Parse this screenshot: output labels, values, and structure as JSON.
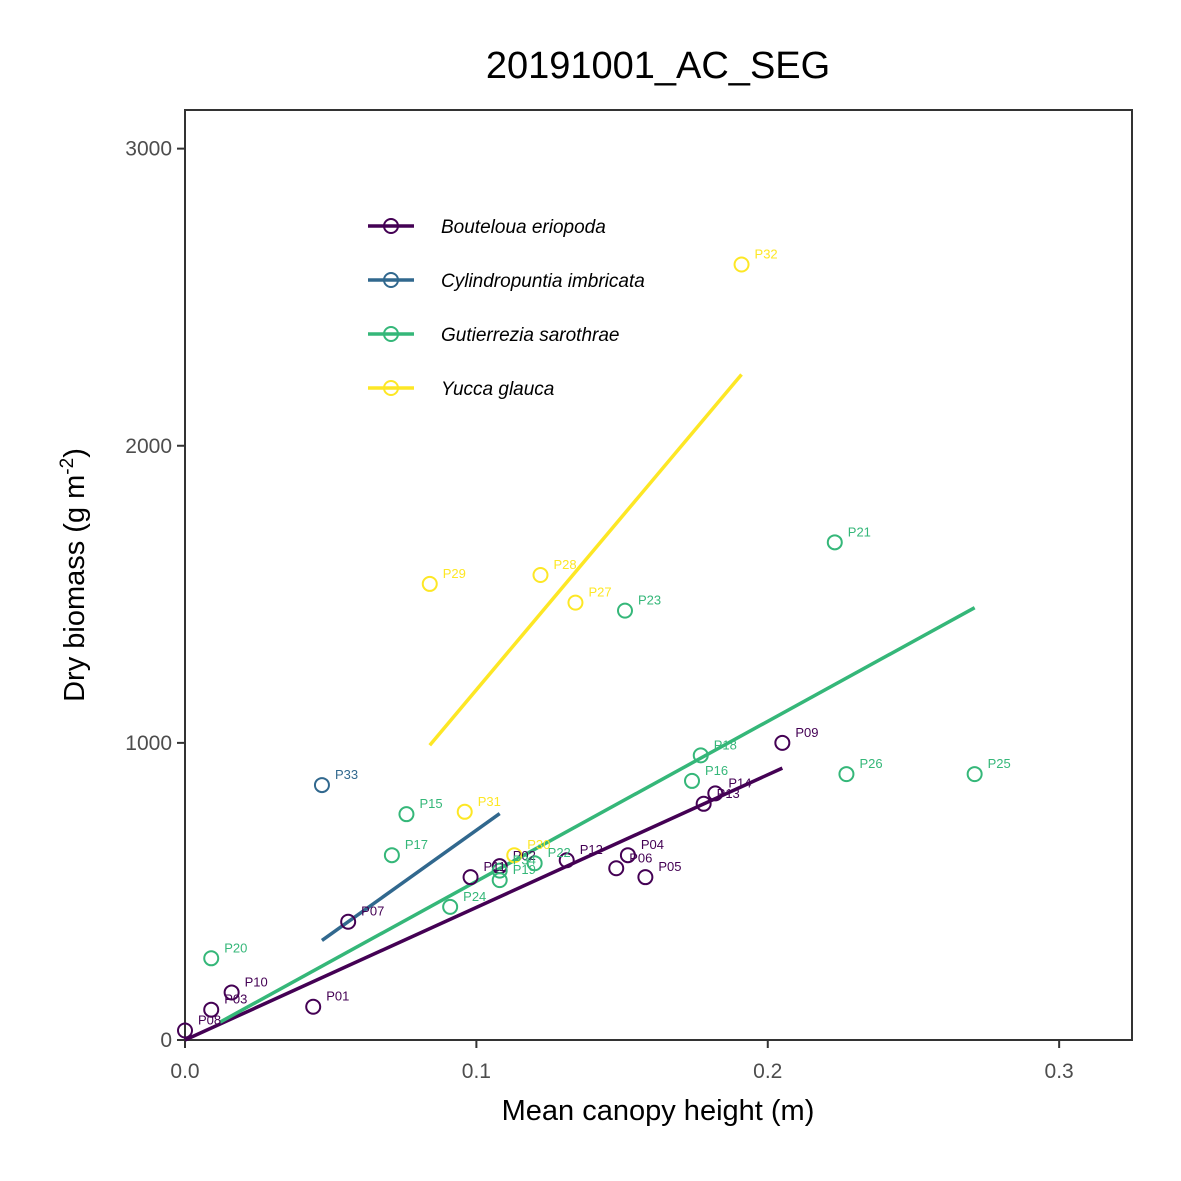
{
  "chart_data": {
    "type": "scatter",
    "title": "20191001_AC_SEG",
    "xlabel": "Mean canopy height (m)",
    "ylabel_main": "Dry biomass (g m",
    "ylabel_exp": "-2",
    "ylabel_close": ")",
    "xlim": [
      0,
      0.325
    ],
    "ylim": [
      0,
      3130
    ],
    "x_ticks": [
      {
        "value": 0.0,
        "label": "0.0"
      },
      {
        "value": 0.1,
        "label": "0.1"
      },
      {
        "value": 0.2,
        "label": "0.2"
      },
      {
        "value": 0.3,
        "label": "0.3"
      }
    ],
    "y_ticks": [
      {
        "value": 0,
        "label": "0"
      },
      {
        "value": 1000,
        "label": "1000"
      },
      {
        "value": 2000,
        "label": "2000"
      },
      {
        "value": 3000,
        "label": "3000"
      }
    ],
    "grid": false,
    "legend_position": "top-left",
    "series": [
      {
        "name": "Bouteloua eriopoda",
        "color": "#440154",
        "fit": [
          [
            0.0,
            0
          ],
          [
            0.205,
            915
          ]
        ],
        "points": [
          {
            "id": "P01",
            "x": 0.044,
            "y": 112
          },
          {
            "id": "P02",
            "x": 0.108,
            "y": 585
          },
          {
            "id": "P03",
            "x": 0.009,
            "y": 102
          },
          {
            "id": "P04",
            "x": 0.152,
            "y": 622
          },
          {
            "id": "P05",
            "x": 0.158,
            "y": 548
          },
          {
            "id": "P06",
            "x": 0.148,
            "y": 578
          },
          {
            "id": "P07",
            "x": 0.056,
            "y": 398
          },
          {
            "id": "P08",
            "x": 0.0,
            "y": 32
          },
          {
            "id": "P09",
            "x": 0.205,
            "y": 1000
          },
          {
            "id": "P10",
            "x": 0.016,
            "y": 160
          },
          {
            "id": "P11",
            "x": 0.098,
            "y": 548
          },
          {
            "id": "P12",
            "x": 0.131,
            "y": 605
          },
          {
            "id": "P13",
            "x": 0.178,
            "y": 795
          },
          {
            "id": "P14",
            "x": 0.182,
            "y": 830
          }
        ]
      },
      {
        "name": "Cylindropuntia imbricata",
        "color": "#31688E",
        "fit": [
          [
            0.047,
            335
          ],
          [
            0.108,
            762
          ]
        ],
        "points": [
          {
            "id": "P33",
            "x": 0.047,
            "y": 858
          }
        ]
      },
      {
        "name": "Gutierrezia sarothrae",
        "color": "#35B779",
        "fit": [
          [
            0.012,
            60
          ],
          [
            0.271,
            1455
          ]
        ],
        "points": [
          {
            "id": "P15",
            "x": 0.076,
            "y": 760
          },
          {
            "id": "P16",
            "x": 0.174,
            "y": 872
          },
          {
            "id": "P17",
            "x": 0.071,
            "y": 622
          },
          {
            "id": "P18",
            "x": 0.177,
            "y": 958
          },
          {
            "id": "P19",
            "x": 0.108,
            "y": 538
          },
          {
            "id": "P20",
            "x": 0.009,
            "y": 275
          },
          {
            "id": "P21",
            "x": 0.223,
            "y": 1675
          },
          {
            "id": "P22",
            "x": 0.12,
            "y": 595
          },
          {
            "id": "P23",
            "x": 0.151,
            "y": 1445
          },
          {
            "id": "P24",
            "x": 0.091,
            "y": 448
          },
          {
            "id": "P25",
            "x": 0.271,
            "y": 895
          },
          {
            "id": "P26",
            "x": 0.227,
            "y": 895
          },
          {
            "id": "P34",
            "x": 0.108,
            "y": 570
          }
        ]
      },
      {
        "name": "Yucca glauca",
        "color": "#FDE725",
        "fit": [
          [
            0.084,
            992
          ],
          [
            0.191,
            2240
          ]
        ],
        "points": [
          {
            "id": "P27",
            "x": 0.134,
            "y": 1472
          },
          {
            "id": "P28",
            "x": 0.122,
            "y": 1565
          },
          {
            "id": "P29",
            "x": 0.084,
            "y": 1535
          },
          {
            "id": "P30",
            "x": 0.113,
            "y": 622
          },
          {
            "id": "P31",
            "x": 0.096,
            "y": 768
          },
          {
            "id": "P32",
            "x": 0.191,
            "y": 2610
          }
        ]
      }
    ]
  }
}
